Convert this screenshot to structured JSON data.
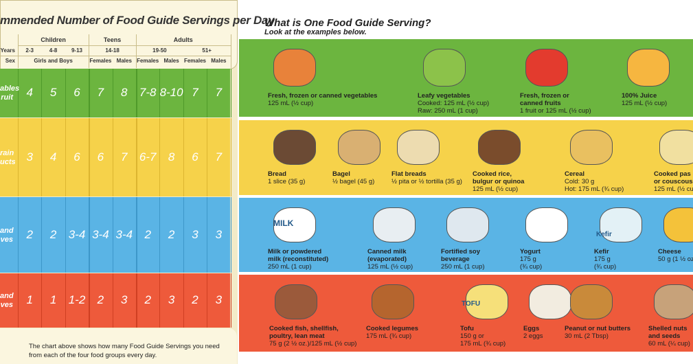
{
  "table": {
    "title": "mmended Number of Food Guide Servings per Day",
    "groups": [
      "Children",
      "Teens",
      "Adults"
    ],
    "age_label": "Years",
    "ages": [
      "2-3",
      "4-8",
      "9-13",
      "14-18",
      "19-50",
      "51+"
    ],
    "sex_label": "Sex",
    "sexes": [
      "Girls and Boys",
      "Females",
      "Males",
      "Females",
      "Males",
      "Females",
      "Males"
    ],
    "rows": [
      {
        "label": [
          "ables",
          "ruit"
        ],
        "values": [
          4,
          5,
          6,
          7,
          8,
          "7-8",
          "8-10",
          7,
          7
        ]
      },
      {
        "label": [
          "rain",
          "ucts"
        ],
        "values": [
          3,
          4,
          6,
          6,
          7,
          "6-7",
          8,
          6,
          7
        ]
      },
      {
        "label": [
          "and",
          "ves"
        ],
        "values": [
          2,
          2,
          "3-4",
          "3-4",
          "3-4",
          2,
          2,
          3,
          3
        ]
      },
      {
        "label": [
          "and",
          "ves"
        ],
        "values": [
          1,
          1,
          "1-2",
          2,
          3,
          2,
          3,
          2,
          3
        ]
      }
    ],
    "note": "The chart above shows how many Food Guide Servings you need from each of the four food groups every day."
  },
  "examples": {
    "title": "What is One Food Guide Serving?",
    "subtitle": "Look at the examples below.",
    "rows": [
      [
        {
          "name": [
            "Fresh, frozen or canned vegetables"
          ],
          "detail": [
            "125 mL (½ cup)"
          ]
        },
        {
          "name": [
            "Leafy vegetables"
          ],
          "detail": [
            "Cooked: 125 mL (½ cup)",
            "Raw: 250 mL (1 cup)"
          ]
        },
        {
          "name": [
            "Fresh, frozen or",
            "canned fruits"
          ],
          "detail": [
            "1 fruit or 125 mL (½ cup)"
          ]
        },
        {
          "name": [
            "100% Juice"
          ],
          "detail": [
            "125 mL (½ cup)"
          ]
        }
      ],
      [
        {
          "name": [
            "Bread"
          ],
          "detail": [
            "1 slice (35 g)"
          ]
        },
        {
          "name": [
            "Bagel"
          ],
          "detail": [
            "½ bagel (45 g)"
          ]
        },
        {
          "name": [
            "Flat breads"
          ],
          "detail": [
            "½ pita or ½ tortilla (35 g)"
          ]
        },
        {
          "name": [
            "Cooked rice,",
            "bulgur or quinoa"
          ],
          "detail": [
            "125 mL (½ cup)"
          ]
        },
        {
          "name": [
            "Cereal"
          ],
          "detail": [
            "Cold: 30 g",
            "Hot: 175 mL (¾ cup)"
          ]
        },
        {
          "name": [
            "Cooked pas",
            "or couscous"
          ],
          "detail": [
            "125 mL (½ cu"
          ]
        }
      ],
      [
        {
          "name": [
            "Milk or powdered",
            "milk (reconstituted)"
          ],
          "detail": [
            "250 mL (1 cup)"
          ]
        },
        {
          "name": [
            "Canned milk",
            "(evaporated)"
          ],
          "detail": [
            "125 mL (½ cup)"
          ]
        },
        {
          "name": [
            "Fortified soy",
            "beverage"
          ],
          "detail": [
            "250 mL (1 cup)"
          ]
        },
        {
          "name": [
            "Yogurt"
          ],
          "detail": [
            "175 g",
            "(¾ cup)"
          ]
        },
        {
          "name": [
            "Kefir"
          ],
          "detail": [
            "175 g",
            "(¾ cup)"
          ]
        },
        {
          "name": [
            "Cheese"
          ],
          "detail": [
            "50 g (1 ½ oz"
          ]
        }
      ],
      [
        {
          "name": [
            "Cooked fish, shellfish,",
            "poultry, lean meat"
          ],
          "detail": [
            "75 g (2 ½ oz.)/125 mL (½ cup)"
          ]
        },
        {
          "name": [
            "Cooked legumes"
          ],
          "detail": [
            "175 mL (¾ cup)"
          ]
        },
        {
          "name": [
            "Tofu"
          ],
          "detail": [
            "150 g or",
            "175 mL (¾ cup)"
          ]
        },
        {
          "name": [
            "Eggs"
          ],
          "detail": [
            "2 eggs"
          ]
        },
        {
          "name": [
            "Peanut or nut butters"
          ],
          "detail": [
            "30 mL (2 Tbsp)"
          ]
        },
        {
          "name": [
            "Shelled nuts",
            "and seeds"
          ],
          "detail": [
            "60 mL (¼ cup)"
          ]
        }
      ]
    ],
    "package_labels": [
      "MILK",
      "TOFU",
      "Kefir"
    ]
  }
}
